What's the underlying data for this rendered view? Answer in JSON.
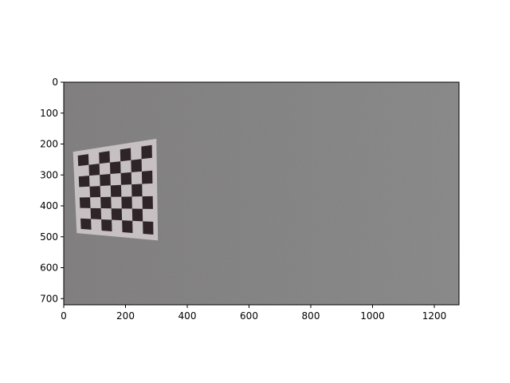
{
  "figure": {
    "image_description": "photo of a gray wall with a printed black-and-white checkerboard calibration pattern on the left",
    "colors": {
      "background": "#ffffff",
      "wall": "#808080",
      "paper": "#c6c0c2",
      "square": "#2f2528",
      "axis": "#000000"
    },
    "checkerboard": {
      "rows": 7,
      "cols": 7,
      "corners_data": [
        [
          30,
          225
        ],
        [
          300,
          183
        ],
        [
          305,
          512
        ],
        [
          42,
          488
        ]
      ]
    },
    "axes": {
      "xlim": [
        0,
        1280
      ],
      "ylim": [
        0,
        720
      ],
      "x_ticks": [
        0,
        200,
        400,
        600,
        800,
        1000,
        1200
      ],
      "y_ticks": [
        0,
        100,
        200,
        300,
        400,
        500,
        600,
        700
      ],
      "x_tick_labels": [
        "0",
        "200",
        "400",
        "600",
        "800",
        "1000",
        "1200"
      ],
      "y_tick_labels": [
        "0",
        "100",
        "200",
        "300",
        "400",
        "500",
        "600",
        "700"
      ]
    }
  }
}
